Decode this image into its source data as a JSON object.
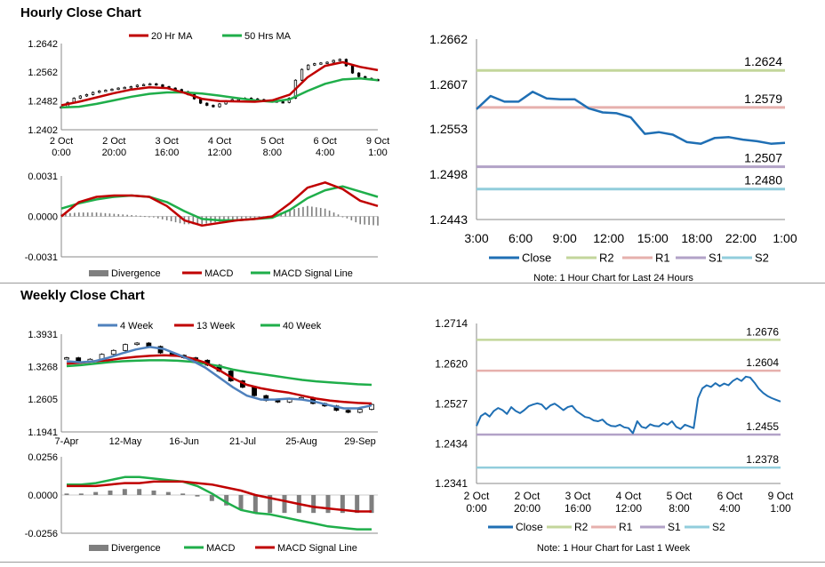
{
  "sections": {
    "hourly_title": "Hourly Close Chart",
    "weekly_title": "Weekly Close Chart"
  },
  "colors": {
    "ma_short": "#c00000",
    "ma_long": "#1fae4a",
    "close": "#1f6fb4",
    "short4": "#4f81bd",
    "r2": "#c3d69b",
    "r1": "#e6b0ad",
    "s1": "#b2a2c7",
    "s2": "#92cddc",
    "bar": "#7f7f7f",
    "candle": "#000000"
  },
  "chart_data": [
    {
      "id": "hourly_price",
      "type": "line",
      "ylim": [
        1.2402,
        1.2642
      ],
      "yticks": [
        "1.2642",
        "1.2562",
        "1.2482",
        "1.2402"
      ],
      "x_labels": [
        [
          "2 Oct",
          "0:00"
        ],
        [
          "2 Oct",
          "20:00"
        ],
        [
          "3 Oct",
          "16:00"
        ],
        [
          "4 Oct",
          "12:00"
        ],
        [
          "5 Oct",
          "8:00"
        ],
        [
          "6 Oct",
          "4:00"
        ],
        [
          "9 Oct",
          "1:00"
        ]
      ],
      "legend": [
        "20 Hr MA",
        "50 Hrs MA"
      ],
      "candles": [
        1.2466,
        1.2478,
        1.249,
        1.2496,
        1.25,
        1.2506,
        1.251,
        1.2512,
        1.2515,
        1.2518,
        1.252,
        1.2522,
        1.2526,
        1.2528,
        1.253,
        1.2527,
        1.2522,
        1.2518,
        1.2514,
        1.2508,
        1.25,
        1.2488,
        1.2476,
        1.247,
        1.2466,
        1.2474,
        1.2482,
        1.2486,
        1.2488,
        1.249,
        1.2488,
        1.2486,
        1.2484,
        1.2482,
        1.248,
        1.2478,
        1.249,
        1.254,
        1.257,
        1.2582,
        1.2586,
        1.2588,
        1.259,
        1.2595,
        1.2598,
        1.258,
        1.256,
        1.255,
        1.2545,
        1.2542,
        1.254
      ],
      "series": [
        {
          "name": "20 Hr MA",
          "values": [
            1.247,
            1.248,
            1.2492,
            1.2504,
            1.2514,
            1.252,
            1.2518,
            1.2505,
            1.2488,
            1.2482,
            1.2481,
            1.248,
            1.2484,
            1.25,
            1.2548,
            1.258,
            1.259,
            1.2577,
            1.2568
          ]
        },
        {
          "name": "50 Hrs MA",
          "values": [
            1.2464,
            1.2466,
            1.2474,
            1.2484,
            1.2494,
            1.2502,
            1.2506,
            1.2506,
            1.2503,
            1.2497,
            1.249,
            1.2484,
            1.248,
            1.2487,
            1.251,
            1.253,
            1.2542,
            1.2545,
            1.254
          ]
        }
      ]
    },
    {
      "id": "hourly_macd",
      "type": "line",
      "ylim": [
        -0.0031,
        0.0031
      ],
      "yticks": [
        "0.0031",
        "0.0000",
        "-0.0031"
      ],
      "legend": [
        "Divergence",
        "MACD",
        "MACD Signal Line"
      ],
      "series": [
        {
          "name": "MACD",
          "values": [
            0.0,
            0.0011,
            0.0015,
            0.0016,
            0.0016,
            0.0015,
            0.0008,
            -0.0003,
            -0.0007,
            -0.0005,
            -0.0003,
            -0.0002,
            0.0,
            0.001,
            0.0022,
            0.0026,
            0.0021,
            0.0012,
            0.0008
          ]
        },
        {
          "name": "MACD Signal Line",
          "values": [
            0.0006,
            0.001,
            0.0013,
            0.0015,
            0.0016,
            0.0015,
            0.0011,
            0.0004,
            -0.0002,
            -0.0003,
            -0.0003,
            -0.0002,
            -0.0001,
            0.0005,
            0.0014,
            0.002,
            0.0023,
            0.0019,
            0.0015
          ]
        },
        {
          "name": "Divergence",
          "values": [
            0.0002,
            0.0003,
            0.0003,
            0.0002,
            0.0001,
            0.0,
            -0.0003,
            -0.0006,
            -0.0006,
            -0.0004,
            -0.0002,
            -0.0001,
            0.0001,
            0.0005,
            0.0008,
            0.0006,
            0.0,
            -0.0006,
            -0.0007
          ]
        }
      ]
    },
    {
      "id": "hourly_close",
      "type": "line",
      "ylim": [
        1.2443,
        1.2662
      ],
      "yticks": [
        "1.2662",
        "1.2607",
        "1.2553",
        "1.2498",
        "1.2443"
      ],
      "x_labels": [
        "3:00",
        "6:00",
        "9:00",
        "12:00",
        "15:00",
        "18:00",
        "22:00",
        "1:00"
      ],
      "legend": [
        "Close",
        "R2",
        "R1",
        "S1",
        "S2"
      ],
      "note": "Note: 1 Hour Chart for Last 24 Hours",
      "levels": {
        "R2": 1.2624,
        "R1": 1.2579,
        "S1": 1.2507,
        "S2": 1.248
      },
      "level_labels": [
        "1.2624",
        "1.2579",
        "1.2507",
        "1.2480"
      ],
      "series": [
        {
          "name": "Close",
          "values": [
            1.2577,
            1.2593,
            1.2586,
            1.2586,
            1.2598,
            1.259,
            1.2589,
            1.2589,
            1.2578,
            1.2573,
            1.2572,
            1.2567,
            1.2547,
            1.2549,
            1.2546,
            1.2537,
            1.2535,
            1.2542,
            1.2543,
            1.254,
            1.2538,
            1.2535,
            1.2536
          ]
        }
      ]
    },
    {
      "id": "weekly_price",
      "type": "line",
      "ylim": [
        1.1941,
        1.3931
      ],
      "yticks": [
        "1.3931",
        "1.3268",
        "1.2605",
        "1.1941"
      ],
      "x_labels": [
        "7-Apr",
        "12-May",
        "16-Jun",
        "21-Jul",
        "25-Aug",
        "29-Sep"
      ],
      "legend": [
        "4 Week",
        "13 Week",
        "40 Week"
      ],
      "candles": [
        1.345,
        1.338,
        1.342,
        1.352,
        1.36,
        1.372,
        1.375,
        1.368,
        1.355,
        1.35,
        1.345,
        1.34,
        1.33,
        1.318,
        1.298,
        1.285,
        1.268,
        1.258,
        1.255,
        1.262,
        1.264,
        1.252,
        1.247,
        1.238,
        1.234,
        1.24,
        1.25
      ],
      "series": [
        {
          "name": "4 Week",
          "values": [
            1.338,
            1.336,
            1.338,
            1.345,
            1.354,
            1.362,
            1.367,
            1.363,
            1.352,
            1.34,
            1.325,
            1.305,
            1.285,
            1.268,
            1.26,
            1.26,
            1.262,
            1.26,
            1.255,
            1.248,
            1.242,
            1.242,
            1.248
          ]
        },
        {
          "name": "13 Week",
          "values": [
            1.333,
            1.335,
            1.338,
            1.34,
            1.344,
            1.347,
            1.349,
            1.35,
            1.349,
            1.344,
            1.335,
            1.32,
            1.303,
            1.29,
            1.283,
            1.278,
            1.274,
            1.268,
            1.262,
            1.258,
            1.255,
            1.253,
            1.252
          ]
        },
        {
          "name": "40 Week",
          "values": [
            1.328,
            1.33,
            1.333,
            1.336,
            1.338,
            1.339,
            1.34,
            1.34,
            1.339,
            1.337,
            1.333,
            1.328,
            1.321,
            1.316,
            1.312,
            1.308,
            1.304,
            1.3,
            1.297,
            1.295,
            1.293,
            1.291,
            1.29
          ]
        }
      ]
    },
    {
      "id": "weekly_macd",
      "type": "line",
      "ylim": [
        -0.0256,
        0.0256
      ],
      "yticks": [
        "0.0256",
        "0.0000",
        "-0.0256"
      ],
      "legend": [
        "Divergence",
        "MACD",
        "MACD Signal Line"
      ],
      "series": [
        {
          "name": "MACD",
          "values": [
            0.007,
            0.007,
            0.008,
            0.01,
            0.012,
            0.012,
            0.011,
            0.01,
            0.009,
            0.006,
            0.001,
            -0.005,
            -0.01,
            -0.012,
            -0.013,
            -0.015,
            -0.017,
            -0.019,
            -0.021,
            -0.022,
            -0.023,
            -0.023
          ]
        },
        {
          "name": "MACD Signal Line",
          "values": [
            0.006,
            0.006,
            0.006,
            0.007,
            0.008,
            0.008,
            0.009,
            0.009,
            0.009,
            0.008,
            0.007,
            0.005,
            0.003,
            0.0,
            -0.002,
            -0.004,
            -0.006,
            -0.008,
            -0.009,
            -0.01,
            -0.011,
            -0.011
          ]
        },
        {
          "name": "Divergence",
          "values": [
            0.001,
            0.001,
            0.002,
            0.003,
            0.004,
            0.004,
            0.003,
            0.002,
            0.001,
            -0.001,
            -0.004,
            -0.007,
            -0.01,
            -0.012,
            -0.012,
            -0.012,
            -0.012,
            -0.012,
            -0.012,
            -0.012,
            -0.012,
            -0.012
          ]
        }
      ]
    },
    {
      "id": "weekly_close",
      "type": "line",
      "ylim": [
        1.2341,
        1.2714
      ],
      "yticks": [
        "1.2714",
        "1.2620",
        "1.2527",
        "1.2434",
        "1.2341"
      ],
      "x_labels": [
        [
          "2 Oct",
          "0:00"
        ],
        [
          "2 Oct",
          "20:00"
        ],
        [
          "3 Oct",
          "16:00"
        ],
        [
          "4 Oct",
          "12:00"
        ],
        [
          "5 Oct",
          "8:00"
        ],
        [
          "6 Oct",
          "4:00"
        ],
        [
          "9 Oct",
          "1:00"
        ]
      ],
      "legend": [
        "Close",
        "R2",
        "R1",
        "S1",
        "S2"
      ],
      "note": "Note: 1 Hour Chart for Last 1 Week",
      "levels": {
        "R2": 1.2676,
        "R1": 1.2604,
        "S1": 1.2455,
        "S2": 1.2378
      },
      "level_labels": [
        "1.2676",
        "1.2604",
        "1.2455",
        "1.2378"
      ],
      "series": [
        {
          "name": "Close",
          "values": [
            1.2475,
            1.2498,
            1.2505,
            1.2497,
            1.251,
            1.2517,
            1.2512,
            1.2503,
            1.2519,
            1.251,
            1.2505,
            1.2512,
            1.2521,
            1.2525,
            1.2528,
            1.2525,
            1.2514,
            1.2523,
            1.2527,
            1.252,
            1.2512,
            1.2519,
            1.2522,
            1.251,
            1.2503,
            1.2496,
            1.2494,
            1.2488,
            1.2486,
            1.249,
            1.248,
            1.2475,
            1.2474,
            1.2478,
            1.2472,
            1.247,
            1.2458,
            1.2486,
            1.2473,
            1.247,
            1.2479,
            1.2475,
            1.2474,
            1.2482,
            1.2478,
            1.2486,
            1.2473,
            1.2468,
            1.2478,
            1.2474,
            1.247,
            1.254,
            1.2563,
            1.257,
            1.2566,
            1.2575,
            1.2568,
            1.2574,
            1.257,
            1.258,
            1.2586,
            1.258,
            1.259,
            1.2588,
            1.2576,
            1.2562,
            1.2552,
            1.2545,
            1.254,
            1.2536,
            1.2532
          ]
        }
      ]
    }
  ]
}
